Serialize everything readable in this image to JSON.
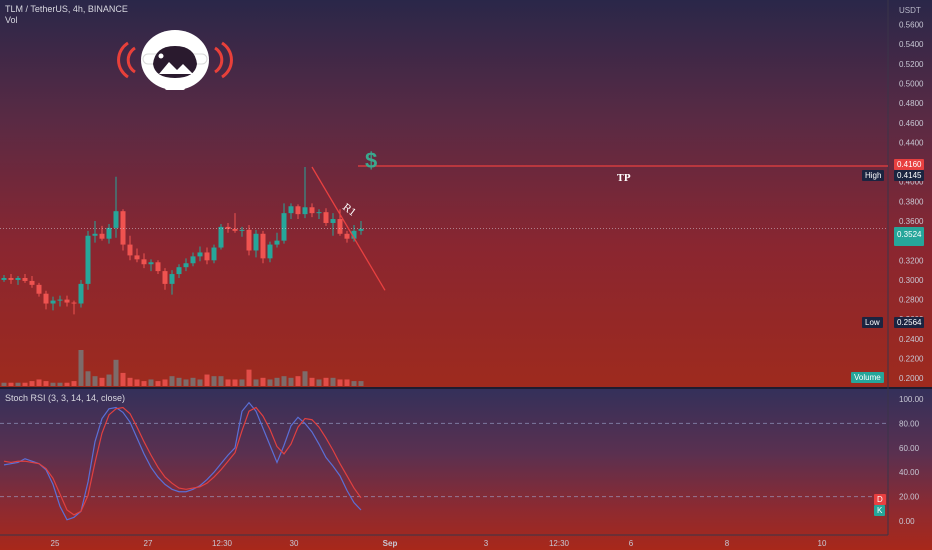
{
  "header": {
    "symbol_line": "TLM / TetherUS, 4h, BINANCE",
    "vol_label": "Vol"
  },
  "logo": {
    "icon": "astronaut-helmet-icon"
  },
  "currency_symbol": "$",
  "price_axis": {
    "unit_label": "USDT",
    "ticks": [
      "0.5600",
      "0.5400",
      "0.5200",
      "0.5000",
      "0.4800",
      "0.4600",
      "0.4400",
      "0.4000",
      "0.3800",
      "0.3600",
      "0.3200",
      "0.3000",
      "0.2800",
      "0.2600",
      "0.2400",
      "0.2200",
      "0.2000"
    ]
  },
  "tags": {
    "target_price": "0.4160",
    "high_label": "High",
    "high_value": "0.4145",
    "last_price": "0.3524",
    "low_label": "Low",
    "low_value": "0.2564",
    "volume_label": "Volume"
  },
  "annotations": {
    "tp_label": "TP",
    "trendline_label": "R1"
  },
  "time_axis": {
    "ticks": [
      "25",
      "27",
      "12:30",
      "30",
      "Sep",
      "3",
      "12:30",
      "6",
      "8",
      "10"
    ]
  },
  "indicator": {
    "title": "Stoch RSI (3, 3, 14, 14, close)",
    "ticks": [
      "100.00",
      "80.00",
      "60.00",
      "40.00",
      "20.00",
      "0.00"
    ],
    "d_label": "D",
    "k_label": "K"
  },
  "colors": {
    "up": "#26a69a",
    "down": "#ef5350",
    "stoch_k": "#5b6fd6",
    "stoch_d": "#e04040",
    "line": "#e84040"
  },
  "chart_data": [
    {
      "type": "candlestick",
      "title": "TLM / TetherUS, 4h, BINANCE",
      "ylabel": "USDT",
      "ylim": [
        0.19,
        0.585
      ],
      "x_ticks": [
        "25",
        "27",
        "12:30",
        "30",
        "Sep",
        "3",
        "12:30",
        "6",
        "8",
        "10"
      ],
      "candles": [
        [
          0.3,
          0.305,
          0.298,
          0.302
        ],
        [
          0.302,
          0.306,
          0.296,
          0.3
        ],
        [
          0.3,
          0.304,
          0.295,
          0.302
        ],
        [
          0.302,
          0.306,
          0.297,
          0.299
        ],
        [
          0.299,
          0.304,
          0.292,
          0.295
        ],
        [
          0.295,
          0.297,
          0.283,
          0.286
        ],
        [
          0.286,
          0.289,
          0.27,
          0.276
        ],
        [
          0.276,
          0.283,
          0.269,
          0.279
        ],
        [
          0.279,
          0.284,
          0.273,
          0.28
        ],
        [
          0.28,
          0.284,
          0.273,
          0.277
        ],
        [
          0.277,
          0.279,
          0.265,
          0.276
        ],
        [
          0.276,
          0.3,
          0.272,
          0.296
        ],
        [
          0.296,
          0.35,
          0.29,
          0.345
        ],
        [
          0.345,
          0.36,
          0.338,
          0.347
        ],
        [
          0.347,
          0.355,
          0.34,
          0.342
        ],
        [
          0.342,
          0.357,
          0.337,
          0.353
        ],
        [
          0.353,
          0.405,
          0.343,
          0.37
        ],
        [
          0.37,
          0.372,
          0.33,
          0.336
        ],
        [
          0.336,
          0.345,
          0.32,
          0.325
        ],
        [
          0.325,
          0.332,
          0.318,
          0.321
        ],
        [
          0.321,
          0.327,
          0.312,
          0.316
        ],
        [
          0.316,
          0.321,
          0.309,
          0.318
        ],
        [
          0.318,
          0.32,
          0.306,
          0.309
        ],
        [
          0.309,
          0.312,
          0.29,
          0.296
        ],
        [
          0.296,
          0.31,
          0.285,
          0.306
        ],
        [
          0.306,
          0.316,
          0.302,
          0.313
        ],
        [
          0.313,
          0.322,
          0.309,
          0.317
        ],
        [
          0.317,
          0.328,
          0.314,
          0.324
        ],
        [
          0.324,
          0.334,
          0.319,
          0.328
        ],
        [
          0.328,
          0.333,
          0.316,
          0.32
        ],
        [
          0.32,
          0.336,
          0.317,
          0.333
        ],
        [
          0.333,
          0.357,
          0.331,
          0.354
        ],
        [
          0.354,
          0.358,
          0.348,
          0.352
        ],
        [
          0.352,
          0.368,
          0.348,
          0.35
        ],
        [
          0.35,
          0.354,
          0.344,
          0.351
        ],
        [
          0.351,
          0.356,
          0.325,
          0.33
        ],
        [
          0.33,
          0.351,
          0.323,
          0.347
        ],
        [
          0.347,
          0.35,
          0.317,
          0.322
        ],
        [
          0.322,
          0.339,
          0.318,
          0.336
        ],
        [
          0.336,
          0.348,
          0.333,
          0.34
        ],
        [
          0.34,
          0.378,
          0.337,
          0.368
        ],
        [
          0.368,
          0.378,
          0.362,
          0.375
        ],
        [
          0.375,
          0.377,
          0.362,
          0.367
        ],
        [
          0.367,
          0.415,
          0.363,
          0.374
        ],
        [
          0.374,
          0.378,
          0.364,
          0.368
        ],
        [
          0.368,
          0.372,
          0.362,
          0.369
        ],
        [
          0.369,
          0.373,
          0.355,
          0.358
        ],
        [
          0.358,
          0.368,
          0.345,
          0.362
        ],
        [
          0.362,
          0.372,
          0.345,
          0.347
        ],
        [
          0.347,
          0.35,
          0.338,
          0.342
        ],
        [
          0.342,
          0.356,
          0.339,
          0.35
        ],
        [
          0.35,
          0.36,
          0.346,
          0.352
        ]
      ],
      "volume": [
        2,
        2,
        2,
        2,
        3,
        4,
        3,
        2,
        2,
        2,
        3,
        22,
        9,
        6,
        5,
        7,
        16,
        8,
        5,
        4,
        3,
        4,
        3,
        4,
        6,
        5,
        4,
        5,
        4,
        7,
        6,
        6,
        4,
        4,
        4,
        10,
        4,
        5,
        4,
        5,
        6,
        5,
        6,
        9,
        5,
        4,
        5,
        5,
        4,
        4,
        3,
        3
      ],
      "target_level": 0.416,
      "high": 0.4145,
      "low": 0.2564,
      "last": 0.3524,
      "trendline": [
        [
          44,
          0.415
        ],
        [
          53,
          0.322
        ]
      ]
    },
    {
      "type": "line",
      "title": "Stoch RSI (3, 3, 14, 14, close)",
      "ylim": [
        -5,
        105
      ],
      "bands": [
        80,
        20
      ],
      "series": [
        {
          "name": "K",
          "values": [
            46,
            47,
            48,
            51,
            49,
            47,
            42,
            30,
            12,
            1,
            3,
            8,
            32,
            65,
            84,
            92,
            93,
            89,
            81,
            68,
            55,
            44,
            36,
            30,
            26,
            24,
            24,
            26,
            29,
            34,
            40,
            47,
            54,
            60,
            90,
            97,
            90,
            76,
            62,
            48,
            62,
            78,
            85,
            80,
            73,
            63,
            52,
            45,
            37,
            25,
            15,
            9
          ]
        },
        {
          "name": "D",
          "values": [
            49,
            48,
            49,
            49,
            48,
            47,
            43,
            35,
            22,
            9,
            5,
            8,
            21,
            48,
            72,
            87,
            92,
            93,
            88,
            77,
            65,
            54,
            44,
            36,
            31,
            27,
            26,
            27,
            28,
            31,
            36,
            42,
            49,
            56,
            74,
            90,
            93,
            86,
            75,
            61,
            55,
            63,
            77,
            84,
            83,
            77,
            68,
            58,
            47,
            37,
            27,
            19
          ]
        }
      ]
    }
  ]
}
